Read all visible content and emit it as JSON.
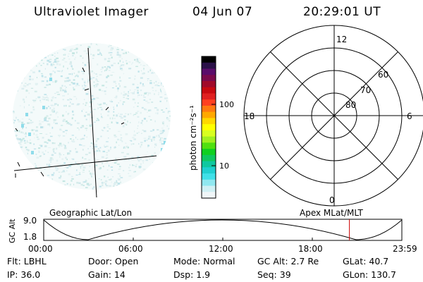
{
  "header": {
    "title": "Ultraviolet Imager",
    "date": "04 Jun 07",
    "time": "20:29:01 UT"
  },
  "colorbar": {
    "label": "photon cm⁻²s⁻¹",
    "ticks": [
      {
        "label": "100",
        "value": 100
      },
      {
        "label": "10",
        "value": 10
      }
    ],
    "colors": [
      "#000000",
      "#2a1048",
      "#5a0c6a",
      "#7a0a4c",
      "#a00a2a",
      "#c80a10",
      "#e02020",
      "#ff4020",
      "#ff7a10",
      "#ffa800",
      "#ffd800",
      "#ffff00",
      "#d8ff20",
      "#a0f020",
      "#50e010",
      "#10d020",
      "#10c860",
      "#10c8a0",
      "#20d0d0",
      "#40e0e8",
      "#90e8f0",
      "#d0f0f4",
      "#f0f6f8"
    ]
  },
  "polar": {
    "labels": {
      "top": "12",
      "bottom": "0",
      "left": "18",
      "right": "6"
    },
    "rings": [
      "60",
      "70",
      "80"
    ]
  },
  "timeline": {
    "left_label": "Geographic Lat/Lon",
    "right_label": "Apex MLat/MLT",
    "axis_label": "GC Alt",
    "y_ticks": [
      "9.0",
      "1.8"
    ],
    "x_ticks": [
      "00:00",
      "06:00",
      "12:00",
      "18:00",
      "23:59"
    ],
    "marker_time": 20.484,
    "marker_color": "#cc0000"
  },
  "info": {
    "row1": [
      "Flt: LBHL",
      "Door: Open",
      "Mode: Normal",
      "GC Alt: 2.7 Re",
      "GLat: 40.7"
    ],
    "row2": [
      "IP: 36.0",
      "Gain: 14",
      "Dsp: 1.9",
      "Seq: 39",
      "GLon: 130.7"
    ]
  }
}
